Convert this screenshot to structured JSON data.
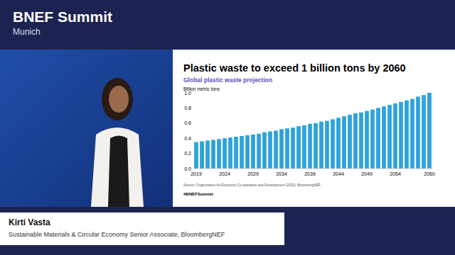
{
  "page": {
    "event": "BNEF Summit",
    "location": "Munich",
    "speaker": "Kirti Vasta",
    "speaker_title": "Sustainable Materials & Circular Economy Senior Associate, BloombergNEF",
    "hashtag": "#BNEFSummit"
  },
  "chart_data": {
    "type": "bar",
    "title": "Plastic waste to exceed 1 billion tons by 2060",
    "subtitle": "Global plastic waste projection",
    "y_label": "Billion metric tons",
    "source": "Source: Organization for Economic Co-operation and Development (2023), BloombergNEF.",
    "categories": [
      "2019",
      null,
      null,
      null,
      null,
      "2024",
      null,
      null,
      null,
      null,
      "2029",
      null,
      null,
      null,
      null,
      "2034",
      null,
      null,
      null,
      null,
      "2039",
      null,
      null,
      null,
      null,
      "2044",
      null,
      null,
      null,
      null,
      "2049",
      null,
      null,
      null,
      null,
      "2054",
      null,
      null,
      null,
      null,
      null,
      "2060"
    ],
    "values": [
      0.35,
      0.36,
      0.37,
      0.38,
      0.39,
      0.4,
      0.41,
      0.42,
      0.43,
      0.44,
      0.45,
      0.46,
      0.48,
      0.49,
      0.5,
      0.52,
      0.53,
      0.54,
      0.56,
      0.57,
      0.59,
      0.6,
      0.62,
      0.63,
      0.65,
      0.67,
      0.69,
      0.71,
      0.73,
      0.74,
      0.76,
      0.78,
      0.8,
      0.82,
      0.84,
      0.86,
      0.88,
      0.9,
      0.92,
      0.95,
      0.97,
      1.0
    ],
    "color": "#2ea3dc",
    "ylim": [
      0,
      1.0
    ],
    "yticks": [
      {
        "value": 0,
        "label": "0.0"
      },
      0.2,
      0.4,
      0.6,
      0.8,
      {
        "value": 1.0,
        "label": "1.0"
      }
    ],
    "grid": false
  }
}
